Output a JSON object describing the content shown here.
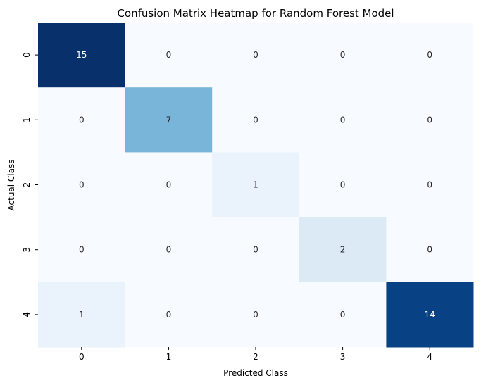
{
  "chart_data": {
    "type": "heatmap",
    "title": "Confusion Matrix Heatmap for Random Forest Model",
    "xlabel": "Predicted Class",
    "ylabel": "Actual Class",
    "x_categories": [
      "0",
      "1",
      "2",
      "3",
      "4"
    ],
    "y_categories": [
      "0",
      "1",
      "2",
      "3",
      "4"
    ],
    "values": [
      [
        15,
        0,
        0,
        0,
        0
      ],
      [
        0,
        7,
        0,
        0,
        0
      ],
      [
        0,
        0,
        1,
        0,
        0
      ],
      [
        0,
        0,
        0,
        2,
        0
      ],
      [
        1,
        0,
        0,
        0,
        14
      ]
    ],
    "colormap": "Blues",
    "vmin": 0,
    "vmax": 15,
    "colorbar": false,
    "annotations": true
  }
}
